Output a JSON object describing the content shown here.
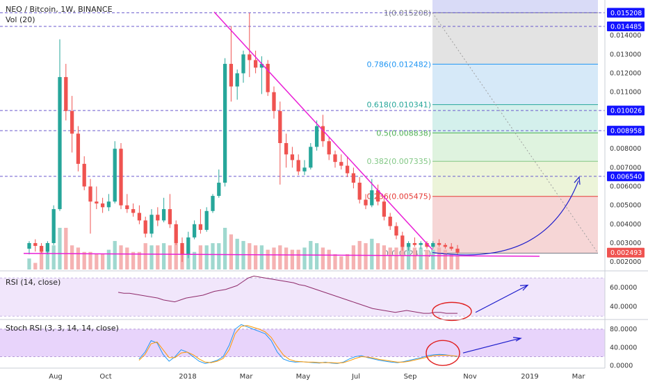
{
  "header": {
    "title": "NEO / Bitcoin, 1W, BINANCE",
    "vol_label": "Vol (20)",
    "rsi_label": "RSI (14, close)",
    "stoch_label": "Stoch RSI (3, 3, 14, 14, close)"
  },
  "chart_data": [
    {
      "type": "candlestick",
      "pane": "price",
      "symbol": "NEO / Bitcoin",
      "interval": "1W",
      "exchange": "BINANCE",
      "x_ticks": [
        "Aug",
        "Oct",
        "2018",
        "Mar",
        "May",
        "Jul",
        "Sep",
        "Nov",
        "2019",
        "Mar"
      ],
      "y_ticks": [
        "0.014000",
        "0.013000",
        "0.012000",
        "0.011000",
        "0.008000",
        "0.007000",
        "0.006000",
        "0.005000",
        "0.004000",
        "0.003000",
        "0.002000"
      ],
      "ylim": [
        0.0016,
        0.0157
      ],
      "price_tags": [
        {
          "label": "0.015208",
          "value": 0.015208,
          "color": "#1414ff"
        },
        {
          "label": "0.014485",
          "value": 0.014485,
          "color": "#1414ff"
        },
        {
          "label": "0.010026",
          "value": 0.010026,
          "color": "#1414ff"
        },
        {
          "label": "0.008958",
          "value": 0.008958,
          "color": "#1414ff"
        },
        {
          "label": "0.006540",
          "value": 0.00654,
          "color": "#1414ff"
        },
        {
          "label": "0.002493",
          "value": 0.002493,
          "color": "#ef5350"
        }
      ],
      "fibonacci": [
        {
          "label": "1(0.015208)",
          "value": 0.015208,
          "color": "#787b86"
        },
        {
          "label": "0.786(0.012482)",
          "value": 0.012482,
          "color": "#2196f3"
        },
        {
          "label": "0.618(0.010341)",
          "value": 0.010341,
          "color": "#26a69a"
        },
        {
          "label": "0.5(0.008838)",
          "value": 0.008838,
          "color": "#4caf50"
        },
        {
          "label": "0.382(0.007335)",
          "value": 0.007335,
          "color": "#81c784"
        },
        {
          "label": "0.236(0.005475)",
          "value": 0.005475,
          "color": "#e53935"
        },
        {
          "label": "0(0.002467)",
          "value": 0.002467,
          "color": "#787b86"
        }
      ],
      "candles": [
        {
          "o": 0.0027,
          "h": 0.0031,
          "l": 0.0024,
          "c": 0.003
        },
        {
          "o": 0.003,
          "h": 0.0032,
          "l": 0.00255,
          "c": 0.00285
        },
        {
          "o": 0.00285,
          "h": 0.003,
          "l": 0.00245,
          "c": 0.00255
        },
        {
          "o": 0.00255,
          "h": 0.0031,
          "l": 0.0024,
          "c": 0.003
        },
        {
          "o": 0.003,
          "h": 0.005,
          "l": 0.0029,
          "c": 0.0048
        },
        {
          "o": 0.0048,
          "h": 0.0138,
          "l": 0.0047,
          "c": 0.0118
        },
        {
          "o": 0.0118,
          "h": 0.0125,
          "l": 0.0095,
          "c": 0.01
        },
        {
          "o": 0.01,
          "h": 0.0108,
          "l": 0.0078,
          "c": 0.0088
        },
        {
          "o": 0.0088,
          "h": 0.0092,
          "l": 0.0068,
          "c": 0.0072
        },
        {
          "o": 0.0072,
          "h": 0.0076,
          "l": 0.0058,
          "c": 0.006
        },
        {
          "o": 0.006,
          "h": 0.0064,
          "l": 0.0035,
          "c": 0.0052
        },
        {
          "o": 0.0052,
          "h": 0.006,
          "l": 0.0048,
          "c": 0.0051
        },
        {
          "o": 0.0051,
          "h": 0.0054,
          "l": 0.0046,
          "c": 0.0049
        },
        {
          "o": 0.0049,
          "h": 0.0056,
          "l": 0.0047,
          "c": 0.0052
        },
        {
          "o": 0.0052,
          "h": 0.0084,
          "l": 0.0051,
          "c": 0.008
        },
        {
          "o": 0.008,
          "h": 0.0083,
          "l": 0.0048,
          "c": 0.005
        },
        {
          "o": 0.005,
          "h": 0.0056,
          "l": 0.0046,
          "c": 0.0048
        },
        {
          "o": 0.0048,
          "h": 0.0051,
          "l": 0.0044,
          "c": 0.0046
        },
        {
          "o": 0.0046,
          "h": 0.005,
          "l": 0.004,
          "c": 0.0042
        },
        {
          "o": 0.0042,
          "h": 0.0044,
          "l": 0.0033,
          "c": 0.0035
        },
        {
          "o": 0.0035,
          "h": 0.0048,
          "l": 0.0033,
          "c": 0.0045
        },
        {
          "o": 0.0045,
          "h": 0.0049,
          "l": 0.0039,
          "c": 0.0042
        },
        {
          "o": 0.0042,
          "h": 0.0054,
          "l": 0.0041,
          "c": 0.0048
        },
        {
          "o": 0.0048,
          "h": 0.0056,
          "l": 0.0038,
          "c": 0.004
        },
        {
          "o": 0.004,
          "h": 0.0042,
          "l": 0.0029,
          "c": 0.003
        },
        {
          "o": 0.003,
          "h": 0.0033,
          "l": 0.002,
          "c": 0.0024
        },
        {
          "o": 0.0024,
          "h": 0.0036,
          "l": 0.0022,
          "c": 0.0033
        },
        {
          "o": 0.0033,
          "h": 0.0042,
          "l": 0.0032,
          "c": 0.004
        },
        {
          "o": 0.004,
          "h": 0.0048,
          "l": 0.0035,
          "c": 0.0037
        },
        {
          "o": 0.0037,
          "h": 0.0049,
          "l": 0.0036,
          "c": 0.0047
        },
        {
          "o": 0.0047,
          "h": 0.0056,
          "l": 0.0046,
          "c": 0.0055
        },
        {
          "o": 0.0055,
          "h": 0.0069,
          "l": 0.0054,
          "c": 0.0062
        },
        {
          "o": 0.0062,
          "h": 0.0128,
          "l": 0.006,
          "c": 0.0125
        },
        {
          "o": 0.0125,
          "h": 0.0145,
          "l": 0.0105,
          "c": 0.0113
        },
        {
          "o": 0.0113,
          "h": 0.0122,
          "l": 0.0106,
          "c": 0.012
        },
        {
          "o": 0.012,
          "h": 0.0132,
          "l": 0.0115,
          "c": 0.013
        },
        {
          "o": 0.013,
          "h": 0.0152,
          "l": 0.0118,
          "c": 0.0127
        },
        {
          "o": 0.0127,
          "h": 0.0132,
          "l": 0.012,
          "c": 0.0123
        },
        {
          "o": 0.0123,
          "h": 0.0129,
          "l": 0.0109,
          "c": 0.0125
        },
        {
          "o": 0.0125,
          "h": 0.0127,
          "l": 0.0108,
          "c": 0.011
        },
        {
          "o": 0.011,
          "h": 0.0113,
          "l": 0.0096,
          "c": 0.01
        },
        {
          "o": 0.01,
          "h": 0.0105,
          "l": 0.0061,
          "c": 0.0083
        },
        {
          "o": 0.0083,
          "h": 0.0088,
          "l": 0.007,
          "c": 0.0077
        },
        {
          "o": 0.0077,
          "h": 0.0081,
          "l": 0.007,
          "c": 0.0074
        },
        {
          "o": 0.0074,
          "h": 0.0077,
          "l": 0.0066,
          "c": 0.0068
        },
        {
          "o": 0.0068,
          "h": 0.0074,
          "l": 0.0066,
          "c": 0.007
        },
        {
          "o": 0.007,
          "h": 0.0083,
          "l": 0.0069,
          "c": 0.0081
        },
        {
          "o": 0.0081,
          "h": 0.0095,
          "l": 0.0079,
          "c": 0.0092
        },
        {
          "o": 0.0092,
          "h": 0.0098,
          "l": 0.0081,
          "c": 0.0084
        },
        {
          "o": 0.0084,
          "h": 0.0086,
          "l": 0.0074,
          "c": 0.0077
        },
        {
          "o": 0.0077,
          "h": 0.0079,
          "l": 0.007,
          "c": 0.0073
        },
        {
          "o": 0.0073,
          "h": 0.0077,
          "l": 0.0069,
          "c": 0.0071
        },
        {
          "o": 0.0071,
          "h": 0.0076,
          "l": 0.0065,
          "c": 0.0067
        },
        {
          "o": 0.0067,
          "h": 0.007,
          "l": 0.0059,
          "c": 0.0062
        },
        {
          "o": 0.0062,
          "h": 0.0065,
          "l": 0.0051,
          "c": 0.0053
        },
        {
          "o": 0.0053,
          "h": 0.0056,
          "l": 0.0048,
          "c": 0.005
        },
        {
          "o": 0.005,
          "h": 0.0064,
          "l": 0.0049,
          "c": 0.0058
        },
        {
          "o": 0.0058,
          "h": 0.0061,
          "l": 0.005,
          "c": 0.0052
        },
        {
          "o": 0.0052,
          "h": 0.0054,
          "l": 0.0042,
          "c": 0.0044
        },
        {
          "o": 0.0044,
          "h": 0.0046,
          "l": 0.0037,
          "c": 0.0039
        },
        {
          "o": 0.0039,
          "h": 0.0041,
          "l": 0.0032,
          "c": 0.0034
        },
        {
          "o": 0.0034,
          "h": 0.0036,
          "l": 0.0026,
          "c": 0.0028
        },
        {
          "o": 0.0028,
          "h": 0.0031,
          "l": 0.0026,
          "c": 0.003
        },
        {
          "o": 0.003,
          "h": 0.0033,
          "l": 0.0028,
          "c": 0.0029
        },
        {
          "o": 0.0029,
          "h": 0.0031,
          "l": 0.0027,
          "c": 0.003
        },
        {
          "o": 0.003,
          "h": 0.0031,
          "l": 0.0027,
          "c": 0.0028
        },
        {
          "o": 0.0028,
          "h": 0.0031,
          "l": 0.0027,
          "c": 0.003
        },
        {
          "o": 0.003,
          "h": 0.0032,
          "l": 0.0028,
          "c": 0.0029
        },
        {
          "o": 0.0029,
          "h": 0.003,
          "l": 0.0027,
          "c": 0.0028
        },
        {
          "o": 0.0028,
          "h": 0.003,
          "l": 0.0026,
          "c": 0.0027
        },
        {
          "o": 0.0027,
          "h": 0.0029,
          "l": 0.0024,
          "c": 0.0025
        }
      ],
      "volume": [
        0.25,
        0.15,
        0.45,
        0.55,
        0.55,
        0.95,
        0.95,
        0.55,
        0.5,
        0.4,
        0.4,
        0.35,
        0.35,
        0.45,
        0.65,
        0.55,
        0.5,
        0.4,
        0.4,
        0.6,
        0.55,
        0.55,
        0.6,
        0.55,
        0.6,
        0.55,
        0.55,
        0.4,
        0.55,
        0.55,
        0.6,
        0.6,
        0.95,
        0.8,
        0.7,
        0.65,
        0.6,
        0.55,
        0.55,
        0.45,
        0.5,
        0.55,
        0.5,
        0.45,
        0.45,
        0.5,
        0.65,
        0.6,
        0.5,
        0.45,
        0.35,
        0.3,
        0.35,
        0.55,
        0.65,
        0.6,
        0.7,
        0.6,
        0.55,
        0.5,
        0.5,
        0.55,
        0.55,
        0.5,
        0.5,
        0.45,
        0.45,
        0.5,
        0.45,
        0.35,
        0.3
      ]
    },
    {
      "type": "line",
      "pane": "rsi",
      "name": "RSI (14, close)",
      "y_ticks": [
        "60.0000",
        "40.0000"
      ],
      "ylim": [
        28,
        76
      ],
      "band": [
        30,
        70
      ],
      "values": [
        55,
        54,
        54,
        53,
        52,
        51,
        50,
        49,
        47,
        46,
        45,
        47,
        49,
        50,
        51,
        52,
        54,
        56,
        57,
        58,
        60,
        62,
        66,
        70,
        72,
        71,
        70,
        69,
        68,
        67,
        66,
        65,
        63,
        62,
        60,
        58,
        56,
        54,
        52,
        50,
        48,
        46,
        44,
        42,
        40,
        38,
        37,
        36,
        35,
        34,
        35,
        36,
        35,
        34,
        33,
        33,
        34,
        34,
        33,
        33,
        33
      ]
    },
    {
      "type": "line",
      "pane": "stoch_rsi",
      "name": "Stoch RSI (3, 3, 14, 14, close)",
      "y_ticks": [
        "80.0000",
        "40.0000",
        "0.0000"
      ],
      "ylim": [
        -5,
        98
      ],
      "band": [
        20,
        80
      ],
      "k_values": [
        15,
        30,
        55,
        50,
        25,
        10,
        20,
        35,
        30,
        20,
        10,
        5,
        8,
        12,
        20,
        45,
        80,
        90,
        85,
        80,
        75,
        70,
        55,
        30,
        15,
        10,
        8,
        9,
        8,
        7,
        6,
        8,
        6,
        5,
        8,
        15,
        20,
        22,
        18,
        15,
        12,
        10,
        8,
        7,
        9,
        12,
        15,
        18,
        22,
        24,
        25,
        24,
        22,
        20
      ],
      "d_values": [
        12,
        25,
        48,
        52,
        35,
        18,
        18,
        28,
        30,
        24,
        15,
        8,
        7,
        10,
        16,
        35,
        70,
        86,
        88,
        84,
        80,
        74,
        62,
        42,
        24,
        14,
        10,
        9,
        8,
        8,
        7,
        7,
        7,
        6,
        7,
        11,
        16,
        20,
        19,
        17,
        14,
        12,
        10,
        8,
        8,
        10,
        13,
        16,
        19,
        22,
        23,
        23,
        22,
        21
      ]
    }
  ]
}
